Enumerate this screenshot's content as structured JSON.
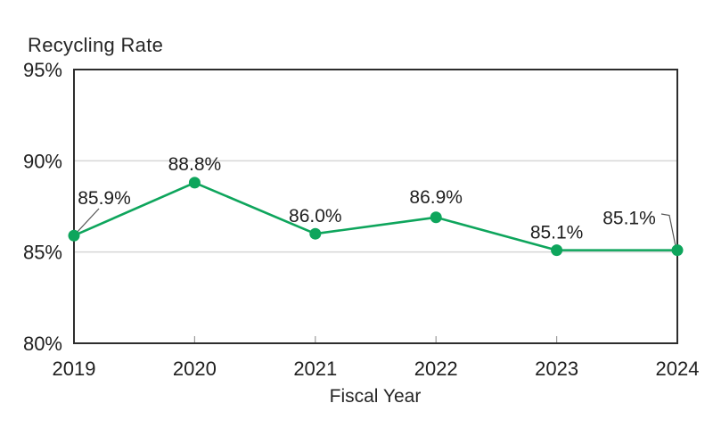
{
  "chart_data": {
    "type": "line",
    "title": "Recycling Rate",
    "xlabel": "Fiscal Year",
    "ylabel": "Recycling Rate",
    "categories": [
      "2019",
      "2020",
      "2021",
      "2022",
      "2023",
      "2024"
    ],
    "series": [
      {
        "name": "Recycling Rate",
        "values": [
          85.9,
          88.8,
          86.0,
          86.9,
          85.1,
          85.1
        ],
        "point_labels": [
          "85.9%",
          "88.8%",
          "86.0%",
          "86.9%",
          "85.1%",
          "85.1%"
        ]
      }
    ],
    "ylim": [
      80,
      95
    ],
    "y_ticks": [
      {
        "value": 95,
        "label": "95%"
      },
      {
        "value": 90,
        "label": "90%"
      },
      {
        "value": 85,
        "label": "85%"
      },
      {
        "value": 80,
        "label": "80%"
      }
    ],
    "grid_values": [
      90,
      85
    ],
    "grid": "horizontal",
    "legend": "none",
    "colors": {
      "line": "#0ea55c",
      "marker": "#0ea55c",
      "grid": "#d6d6d6",
      "axis_box": "#2d2d2d",
      "tick": "#9b9b9b",
      "text": "#1f1f1f",
      "leader": "#555555"
    }
  }
}
